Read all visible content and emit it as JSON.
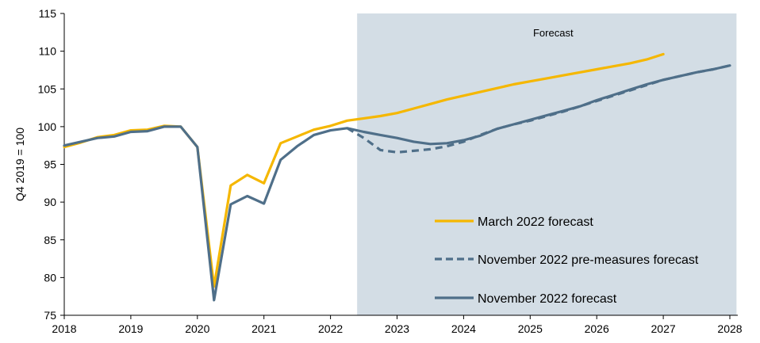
{
  "chart_data": {
    "type": "line",
    "title": "",
    "xlabel": "",
    "ylabel": "Q4 2019 = 100",
    "ylim": [
      75,
      115
    ],
    "yticks": [
      75,
      80,
      85,
      90,
      95,
      100,
      105,
      110,
      115
    ],
    "xlim": [
      2018,
      2028
    ],
    "xticks": [
      2018,
      2019,
      2020,
      2021,
      2022,
      2023,
      2024,
      2025,
      2026,
      2027,
      2028
    ],
    "grid": false,
    "legend_position": "bottom-right",
    "forecast_region": {
      "label": "Forecast",
      "start": 2022.4,
      "end": 2028.1,
      "color": "#d3dde5"
    },
    "series": [
      {
        "name": "March 2022 forecast",
        "color": "#f5b700",
        "style": "solid",
        "x": [
          2018.0,
          2018.25,
          2018.5,
          2018.75,
          2019.0,
          2019.25,
          2019.5,
          2019.75,
          2020.0,
          2020.25,
          2020.5,
          2020.75,
          2021.0,
          2021.25,
          2021.5,
          2021.75,
          2022.0,
          2022.25,
          2022.5,
          2022.75,
          2023.0,
          2023.25,
          2023.5,
          2023.75,
          2024.0,
          2024.25,
          2024.5,
          2024.75,
          2025.0,
          2025.25,
          2025.5,
          2025.75,
          2026.0,
          2026.25,
          2026.5,
          2026.75,
          2027.0
        ],
        "values": [
          97.3,
          97.9,
          98.6,
          98.9,
          99.5,
          99.6,
          100.1,
          100.0,
          97.3,
          78.8,
          92.2,
          93.6,
          92.5,
          97.8,
          98.7,
          99.6,
          100.1,
          100.8,
          101.1,
          101.4,
          101.8,
          102.4,
          103.0,
          103.6,
          104.1,
          104.6,
          105.1,
          105.6,
          106.0,
          106.4,
          106.8,
          107.2,
          107.6,
          108.0,
          108.4,
          108.9,
          109.6
        ]
      },
      {
        "name": "November 2022 pre-measures forecast",
        "color": "#4f6f89",
        "style": "dashed",
        "x": [
          2022.25,
          2022.5,
          2022.75,
          2023.0,
          2023.25,
          2023.5,
          2023.75,
          2024.0,
          2024.25,
          2024.5,
          2024.75,
          2025.0,
          2025.25,
          2025.5,
          2025.75,
          2026.0,
          2026.25,
          2026.5,
          2026.75,
          2027.0,
          2027.25,
          2027.5,
          2027.75,
          2028.0
        ],
        "values": [
          99.8,
          98.5,
          96.9,
          96.6,
          96.8,
          97.0,
          97.4,
          98.0,
          98.9,
          99.7,
          100.3,
          100.8,
          101.4,
          102.0,
          102.7,
          103.4,
          104.1,
          104.8,
          105.5,
          106.2,
          106.7,
          107.2,
          107.6,
          108.1
        ]
      },
      {
        "name": "November 2022 forecast",
        "color": "#4f6f89",
        "style": "solid",
        "x": [
          2018.0,
          2018.25,
          2018.5,
          2018.75,
          2019.0,
          2019.25,
          2019.5,
          2019.75,
          2020.0,
          2020.25,
          2020.5,
          2020.75,
          2021.0,
          2021.25,
          2021.5,
          2021.75,
          2022.0,
          2022.25,
          2022.5,
          2022.75,
          2023.0,
          2023.25,
          2023.5,
          2023.75,
          2024.0,
          2024.25,
          2024.5,
          2024.75,
          2025.0,
          2025.25,
          2025.5,
          2025.75,
          2026.0,
          2026.25,
          2026.5,
          2026.75,
          2027.0,
          2027.25,
          2027.5,
          2027.75,
          2028.0
        ],
        "values": [
          97.5,
          98.0,
          98.5,
          98.7,
          99.3,
          99.4,
          100.0,
          100.0,
          97.3,
          77.0,
          89.7,
          90.8,
          89.8,
          95.6,
          97.4,
          98.9,
          99.5,
          99.8,
          99.3,
          98.9,
          98.5,
          98.0,
          97.7,
          97.8,
          98.2,
          98.8,
          99.7,
          100.3,
          100.9,
          101.5,
          102.1,
          102.7,
          103.5,
          104.2,
          104.9,
          105.6,
          106.2,
          106.7,
          107.2,
          107.6,
          108.1
        ]
      }
    ]
  }
}
